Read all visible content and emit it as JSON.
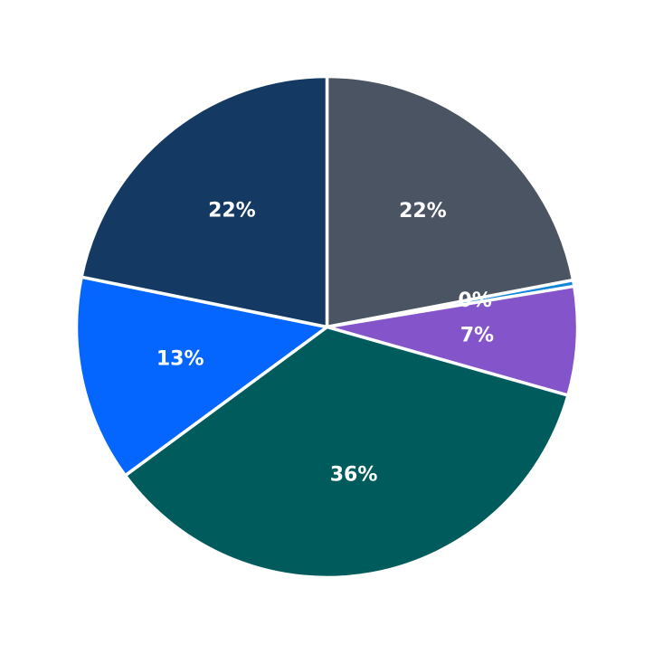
{
  "chart_data": {
    "type": "pie",
    "start_angle_deg": 0,
    "direction": "clockwise",
    "slices": [
      {
        "value": 22.0,
        "label": "22%",
        "color": "#4a5463"
      },
      {
        "value": 0.4,
        "label": "0%",
        "color": "#1185d8"
      },
      {
        "value": 7.0,
        "label": "7%",
        "color": "#8454cb"
      },
      {
        "value": 35.5,
        "label": "36%",
        "color": "#005c5c"
      },
      {
        "value": 13.3,
        "label": "13%",
        "color": "#0566ff"
      },
      {
        "value": 21.8,
        "label": "22%",
        "color": "#143963"
      }
    ]
  }
}
